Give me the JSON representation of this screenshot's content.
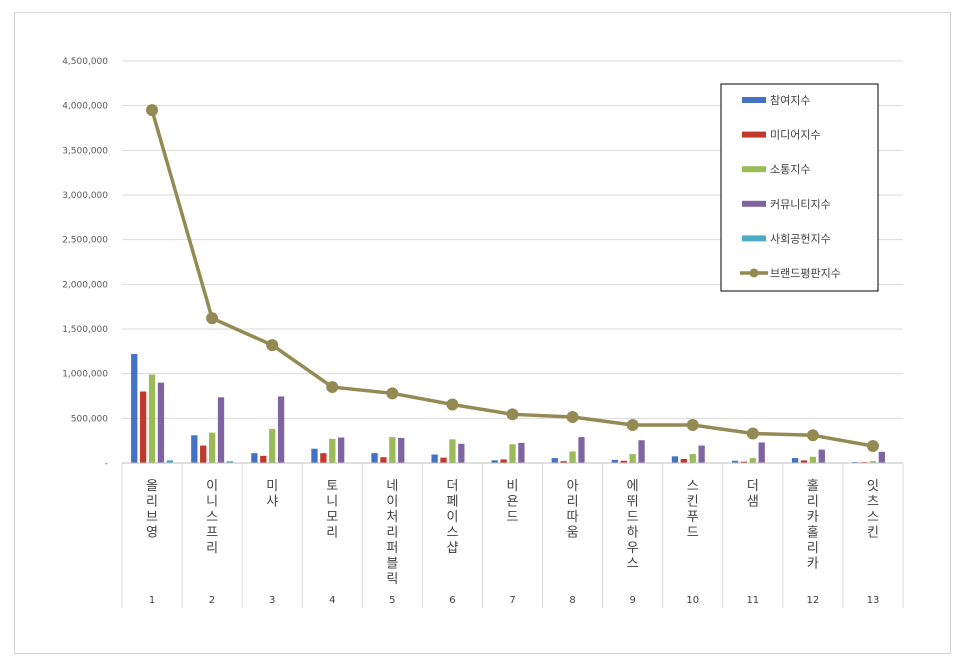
{
  "chart_data": {
    "type": "bar",
    "title": "",
    "xlabel": "",
    "ylabel": "",
    "ylim": [
      0,
      4500000
    ],
    "yticks": [
      0,
      500000,
      1000000,
      1500000,
      2000000,
      2500000,
      3000000,
      3500000,
      4000000,
      4500000
    ],
    "ytick_labels": [
      "-",
      "500,000",
      "1,000,000",
      "1,500,000",
      "2,000,000",
      "2,500,000",
      "3,000,000",
      "3,500,000",
      "4,000,000",
      "4,500,000"
    ],
    "grid": true,
    "legend_position": "top-right",
    "categories": [
      "올리브영",
      "이니스프리",
      "미샤",
      "토니모리",
      "네이처리퍼블릭",
      "더페이스샵",
      "비욘드",
      "아리따움",
      "에뛰드하우스",
      "스킨푸드",
      "더샘",
      "홀리카홀리카",
      "잇츠스킨"
    ],
    "ranks": [
      "1",
      "2",
      "3",
      "4",
      "5",
      "6",
      "7",
      "8",
      "9",
      "10",
      "11",
      "12",
      "13"
    ],
    "series": [
      {
        "name": "참여지수",
        "kind": "bar",
        "color": "#4472C4",
        "values": [
          1220000,
          310000,
          110000,
          160000,
          110000,
          95000,
          30000,
          55000,
          35000,
          75000,
          25000,
          55000,
          10000
        ]
      },
      {
        "name": "미디어지수",
        "kind": "bar",
        "color": "#C0392B",
        "values": [
          800000,
          195000,
          80000,
          110000,
          65000,
          60000,
          40000,
          20000,
          25000,
          45000,
          15000,
          30000,
          10000
        ]
      },
      {
        "name": "소통지수",
        "kind": "bar",
        "color": "#9BBB59",
        "values": [
          990000,
          340000,
          380000,
          270000,
          290000,
          265000,
          210000,
          130000,
          100000,
          100000,
          55000,
          70000,
          20000
        ]
      },
      {
        "name": "커뮤니티지수",
        "kind": "bar",
        "color": "#8064A2",
        "values": [
          900000,
          735000,
          745000,
          285000,
          280000,
          215000,
          225000,
          290000,
          255000,
          195000,
          230000,
          150000,
          125000
        ]
      },
      {
        "name": "사회공헌지수",
        "kind": "bar",
        "color": "#4BACC6",
        "values": [
          30000,
          20000,
          0,
          0,
          0,
          0,
          0,
          0,
          0,
          0,
          0,
          0,
          0
        ]
      },
      {
        "name": "브랜드평판지수",
        "kind": "line",
        "color": "#948A54",
        "values": [
          3950000,
          1620000,
          1320000,
          850000,
          780000,
          655000,
          545000,
          515000,
          425000,
          425000,
          330000,
          310000,
          190000
        ]
      }
    ]
  }
}
